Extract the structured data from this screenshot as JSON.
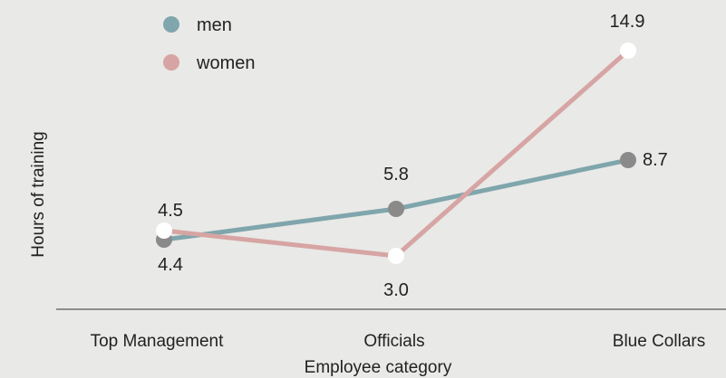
{
  "chart_data": {
    "type": "line",
    "categories": [
      "Top Management",
      "Officials",
      "Blue Collars"
    ],
    "series": [
      {
        "name": "men",
        "values": [
          4.4,
          5.8,
          8.7
        ],
        "color": "#7fa6ac",
        "marker": "#8a8a8a"
      },
      {
        "name": "women",
        "values": [
          4.5,
          3.0,
          14.9
        ],
        "color": "#d6a5a3",
        "marker": "#ffffff"
      }
    ],
    "xlabel": "Employee category",
    "ylabel": "Hours of training",
    "title": "",
    "legend_position": "top-left",
    "grid": false,
    "ylim": [
      0,
      16
    ]
  }
}
